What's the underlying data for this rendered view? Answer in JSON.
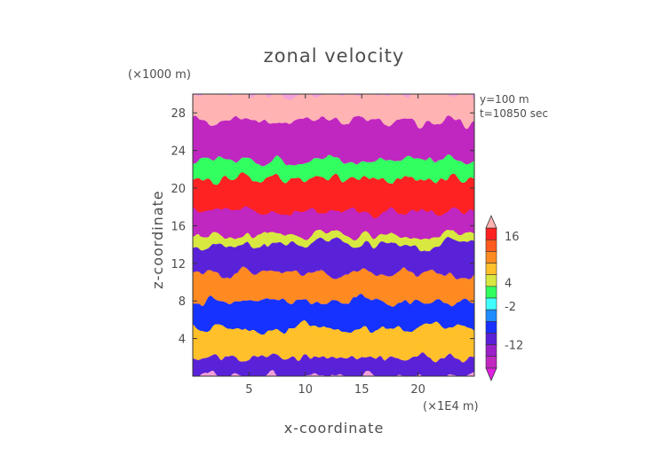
{
  "chart_data": {
    "type": "heatmap",
    "title": "zonal velocity",
    "xlabel": "x-coordinate",
    "ylabel": "z-coordinate",
    "x_unit_label": "(×1E4 m)",
    "y_unit_label": "(×1000 m)",
    "annotations": [
      "y=100 m",
      "t=10850 sec"
    ],
    "xlim": [
      0,
      25
    ],
    "ylim": [
      0,
      30
    ],
    "x_ticks": [
      "5",
      "10",
      "15",
      "20"
    ],
    "x_tick_values": [
      5,
      10,
      15,
      20
    ],
    "y_ticks": [
      "4",
      "8",
      "12",
      "16",
      "20",
      "24",
      "28"
    ],
    "y_tick_values": [
      4,
      8,
      12,
      16,
      20,
      24,
      28
    ],
    "colorbar": {
      "labels": [
        "16",
        "4",
        "-2",
        "-12"
      ],
      "label_values": [
        16,
        4,
        -2,
        -12
      ],
      "orientation": "vertical",
      "placement": "right",
      "colors": [
        "#ffb3b3",
        "#ff2020",
        "#ff5a1e",
        "#ff8a22",
        "#ffc02a",
        "#d8e840",
        "#30ff60",
        "#40ffff",
        "#1e8cff",
        "#1830ff",
        "#5a20d8",
        "#9a20c8",
        "#c028c0",
        "#e020e0"
      ]
    },
    "bands": [
      {
        "z_min": 0,
        "z_max": 2,
        "value": -8
      },
      {
        "z_min": 2,
        "z_max": 5,
        "value": 6
      },
      {
        "z_min": 5,
        "z_max": 8,
        "value": -6
      },
      {
        "z_min": 8,
        "z_max": 11,
        "value": 8
      },
      {
        "z_min": 11,
        "z_max": 14,
        "value": -9
      },
      {
        "z_min": 14,
        "z_max": 15,
        "value": 4
      },
      {
        "z_min": 15,
        "z_max": 17.5,
        "value": -14
      },
      {
        "z_min": 17.5,
        "z_max": 21,
        "value": 14
      },
      {
        "z_min": 21,
        "z_max": 23,
        "value": 2
      },
      {
        "z_min": 23,
        "z_max": 27,
        "value": -15
      },
      {
        "z_min": 27,
        "z_max": 30,
        "value": 16
      }
    ]
  }
}
